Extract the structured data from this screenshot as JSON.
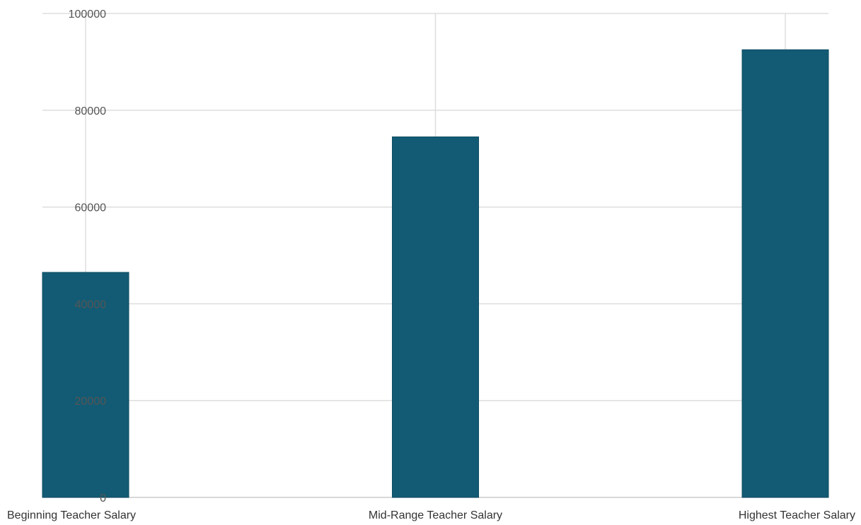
{
  "chart_data": {
    "type": "bar",
    "categories": [
      "Beginning Teacher Salary",
      "Mid-Range Teacher Salary",
      "Highest Teacher Salary"
    ],
    "values": [
      46500,
      74500,
      92500
    ],
    "title": "",
    "xlabel": "",
    "ylabel": "",
    "ylim": [
      0,
      100000
    ],
    "yticks": [
      "0",
      "20000",
      "40000",
      "60000",
      "80000",
      "100000"
    ],
    "grid": true,
    "legend": "none",
    "colors": {
      "bar": "#135b74",
      "grid": "#dddddd",
      "axis": "#cccccc"
    }
  }
}
